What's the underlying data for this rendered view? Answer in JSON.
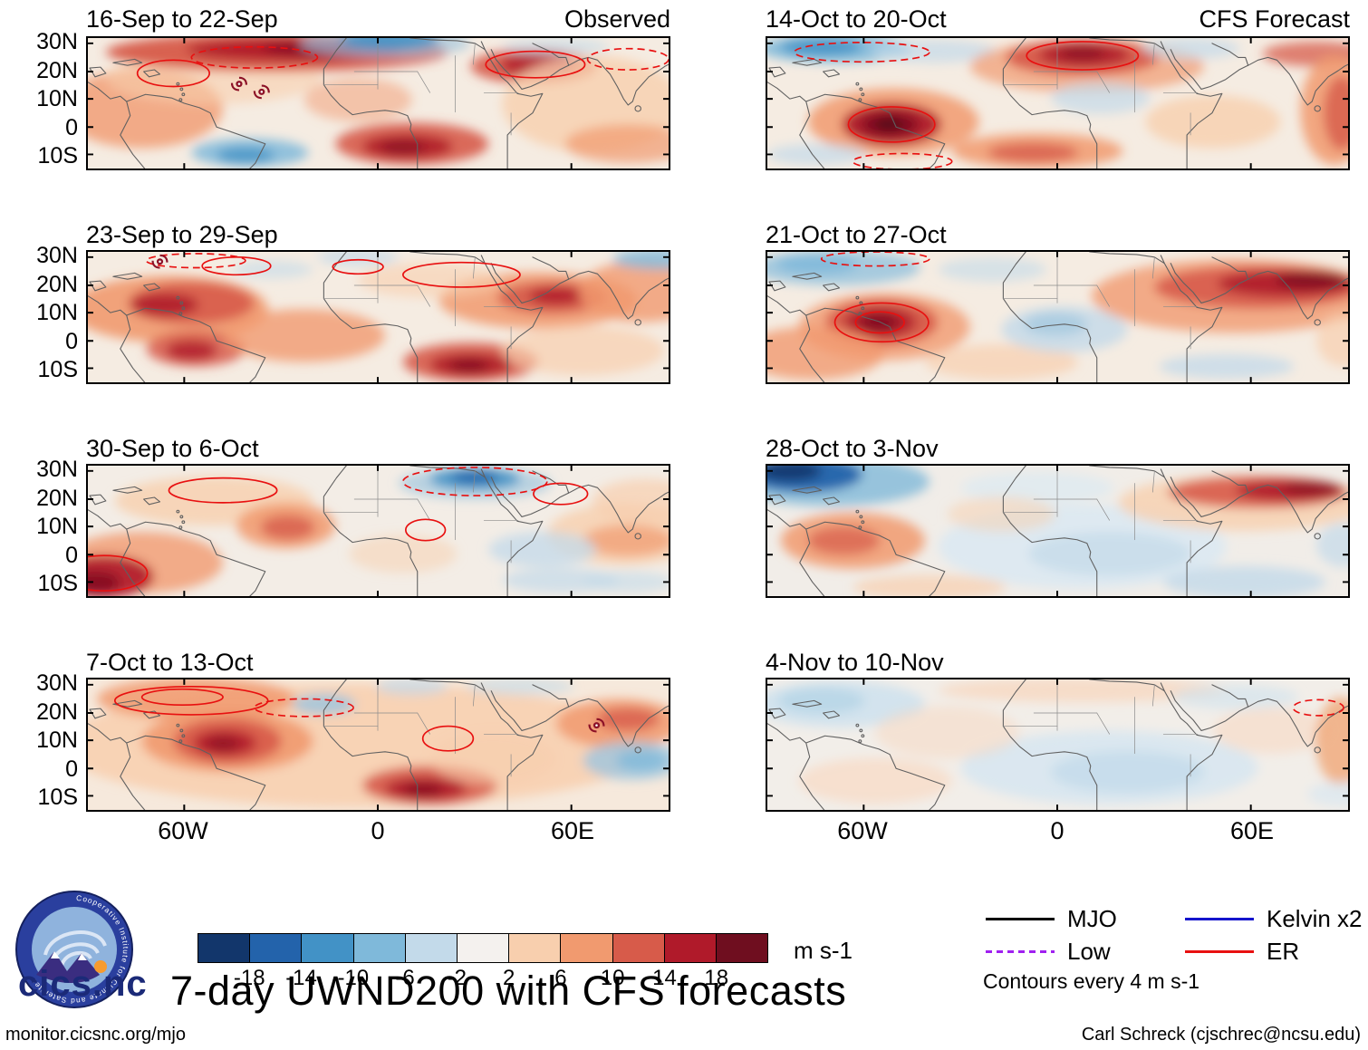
{
  "figure": {
    "title": "7-day UWND200 with CFS forecasts"
  },
  "columns": [
    {
      "title": "Observed"
    },
    {
      "title": "CFS Forecast"
    }
  ],
  "panels": [
    {
      "period": "16-Sep to 22-Sep"
    },
    {
      "period": "23-Sep to 29-Sep"
    },
    {
      "period": "30-Sep to 6-Oct"
    },
    {
      "period": "7-Oct to 13-Oct"
    },
    {
      "period": "14-Oct to 20-Oct"
    },
    {
      "period": "21-Oct to 27-Oct"
    },
    {
      "period": "28-Oct to 3-Nov"
    },
    {
      "period": "4-Nov to 10-Nov"
    }
  ],
  "axes": {
    "y_ticks": [
      "30N",
      "20N",
      "10N",
      "0",
      "10S"
    ],
    "x_ticks": [
      "60W",
      "0",
      "60E"
    ]
  },
  "colorbar": {
    "colors": [
      "#12366b",
      "#2363ab",
      "#4292c6",
      "#7fb9da",
      "#c3daea",
      "#f4f1ee",
      "#f8cfae",
      "#f19a6f",
      "#d75b4a",
      "#b01a2a",
      "#6f0e1f"
    ],
    "ticks": [
      "-18",
      "-14",
      "-10",
      "-6",
      "-2",
      "2",
      "6",
      "10",
      "14",
      "18"
    ],
    "units": "m s-1"
  },
  "legend": {
    "items": [
      {
        "label": "MJO",
        "color": "#000000",
        "dashed": false
      },
      {
        "label": "Low",
        "color": "#a020f0",
        "dashed": true
      },
      {
        "label": "Kelvin x2",
        "color": "#1414cc",
        "dashed": false
      },
      {
        "label": "ER",
        "color": "#e81010",
        "dashed": false
      }
    ],
    "note": "Contours every 4 m s-1"
  },
  "logo": {
    "text": "cics.nc",
    "ring_text": "Cooperative Institute for Climate and Satellites"
  },
  "footer": {
    "left": "monitor.cicsnc.org/mjo",
    "right": "Carl Schreck (cjschrec@ncsu.edu)"
  },
  "chart_data": {
    "type": "heatmap",
    "title": "7-day UWND200 with CFS forecasts",
    "variable": "200-hPa zonal wind anomaly (UWND200), 7-day means",
    "units": "m s-1",
    "layout": "4 rows x 2 columns of longitude-latitude map panels; left column observed, right column CFS forecast; shared diverging colorbar",
    "columns": [
      "Observed",
      "CFS Forecast"
    ],
    "panels": [
      {
        "period": "16-Sep to 22-Sep",
        "column": "Observed"
      },
      {
        "period": "23-Sep to 29-Sep",
        "column": "Observed"
      },
      {
        "period": "30-Sep to 6-Oct",
        "column": "Observed"
      },
      {
        "period": "7-Oct to 13-Oct",
        "column": "Observed"
      },
      {
        "period": "14-Oct to 20-Oct",
        "column": "CFS Forecast"
      },
      {
        "period": "21-Oct to 27-Oct",
        "column": "CFS Forecast"
      },
      {
        "period": "28-Oct to 3-Nov",
        "column": "CFS Forecast"
      },
      {
        "period": "4-Nov to 10-Nov",
        "column": "CFS Forecast"
      }
    ],
    "x_axis": {
      "ticks": [
        "60W",
        "0",
        "60E"
      ]
    },
    "y_axis": {
      "ticks": [
        "30N",
        "20N",
        "10N",
        "0",
        "10S"
      ]
    },
    "color_scale": {
      "type": "diverging",
      "tick_values": [
        -18,
        -14,
        -10,
        -6,
        -2,
        2,
        6,
        10,
        14,
        18
      ],
      "units": "m s-1",
      "negative_color_meaning": "blue shades = easterly (negative) wind anomaly",
      "positive_color_meaning": "red shades = westerly (positive) wind anomaly",
      "colors": [
        "#12366b",
        "#2363ab",
        "#4292c6",
        "#7fb9da",
        "#c3daea",
        "#f4f1ee",
        "#f8cfae",
        "#f19a6f",
        "#d75b4a",
        "#b01a2a",
        "#6f0e1f"
      ]
    },
    "contour_note": "Contours every 4 m s-1",
    "wave_overlays": [
      "MJO",
      "Low",
      "Kelvin x2",
      "ER"
    ]
  }
}
